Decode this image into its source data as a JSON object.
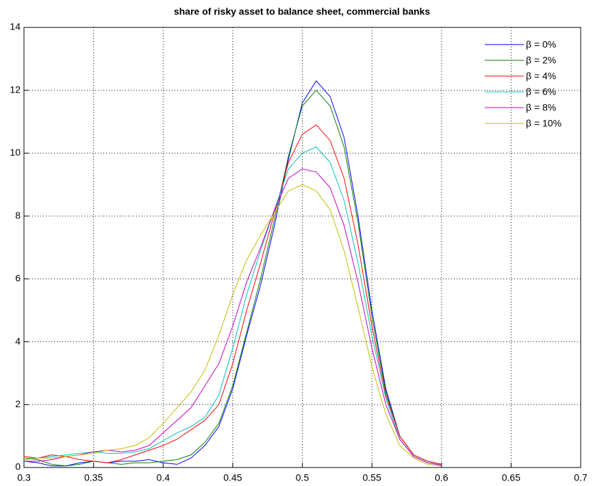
{
  "chart_data": {
    "type": "line",
    "title": "share of risky asset to balance sheet, commercial banks",
    "x": [
      0.3,
      0.31,
      0.32,
      0.33,
      0.34,
      0.35,
      0.36,
      0.37,
      0.38,
      0.39,
      0.4,
      0.41,
      0.42,
      0.43,
      0.44,
      0.45,
      0.46,
      0.47,
      0.48,
      0.49,
      0.5,
      0.51,
      0.52,
      0.53,
      0.54,
      0.55,
      0.56,
      0.57,
      0.58,
      0.59,
      0.6
    ],
    "series": [
      {
        "name": "β = 0%",
        "color": "#0000ff",
        "values": [
          0.2,
          0.15,
          0.05,
          0.05,
          0.15,
          0.2,
          0.15,
          0.2,
          0.2,
          0.25,
          0.15,
          0.1,
          0.3,
          0.7,
          1.3,
          2.5,
          4.2,
          5.8,
          7.7,
          9.8,
          11.6,
          12.3,
          11.8,
          10.5,
          8.0,
          5.0,
          2.5,
          1.0,
          0.4,
          0.2,
          0.1
        ]
      },
      {
        "name": "β = 2%",
        "color": "#008000",
        "values": [
          0.3,
          0.25,
          0.1,
          0.05,
          0.1,
          0.2,
          0.15,
          0.1,
          0.15,
          0.15,
          0.2,
          0.25,
          0.4,
          0.8,
          1.4,
          2.6,
          4.3,
          6.0,
          7.9,
          9.9,
          11.5,
          12.0,
          11.5,
          10.2,
          7.8,
          4.8,
          2.4,
          1.0,
          0.4,
          0.2,
          0.1
        ]
      },
      {
        "name": "β = 4%",
        "color": "#ff0000",
        "values": [
          0.35,
          0.3,
          0.4,
          0.35,
          0.25,
          0.2,
          0.15,
          0.25,
          0.4,
          0.55,
          0.7,
          0.9,
          1.2,
          1.5,
          2.0,
          3.3,
          5.0,
          6.5,
          8.1,
          9.7,
          10.6,
          10.9,
          10.4,
          9.2,
          7.1,
          4.5,
          2.3,
          1.0,
          0.4,
          0.2,
          0.1
        ]
      },
      {
        "name": "β = 6%",
        "color": "#00bfbf",
        "values": [
          0.25,
          0.3,
          0.35,
          0.4,
          0.45,
          0.5,
          0.45,
          0.45,
          0.5,
          0.6,
          0.85,
          1.1,
          1.3,
          1.6,
          2.3,
          3.8,
          5.5,
          6.9,
          8.2,
          9.5,
          10.0,
          10.2,
          9.7,
          8.5,
          6.5,
          4.2,
          2.2,
          0.9,
          0.35,
          0.15,
          0.07
        ]
      },
      {
        "name": "β = 8%",
        "color": "#bf00bf",
        "values": [
          0.2,
          0.2,
          0.25,
          0.35,
          0.4,
          0.5,
          0.55,
          0.5,
          0.55,
          0.7,
          1.1,
          1.5,
          1.9,
          2.6,
          3.3,
          4.5,
          5.9,
          7.0,
          8.2,
          9.2,
          9.5,
          9.4,
          8.9,
          7.7,
          5.9,
          3.8,
          2.0,
          0.9,
          0.35,
          0.15,
          0.07
        ]
      },
      {
        "name": "β = 10%",
        "color": "#bfbf00",
        "values": [
          0.3,
          0.3,
          0.3,
          0.35,
          0.4,
          0.45,
          0.55,
          0.6,
          0.7,
          0.95,
          1.4,
          1.9,
          2.4,
          3.1,
          4.2,
          5.5,
          6.6,
          7.4,
          8.1,
          8.8,
          9.0,
          8.8,
          8.2,
          6.9,
          5.1,
          3.2,
          1.7,
          0.7,
          0.3,
          0.1,
          0.05
        ]
      }
    ],
    "xlim": [
      0.3,
      0.7
    ],
    "xticks": [
      0.3,
      0.35,
      0.4,
      0.45,
      0.5,
      0.55,
      0.6,
      0.65,
      0.7
    ],
    "ylim": [
      0,
      14
    ],
    "yticks": [
      0,
      2,
      4,
      6,
      8,
      10,
      12,
      14
    ],
    "grid": true,
    "legend": "northeast"
  }
}
